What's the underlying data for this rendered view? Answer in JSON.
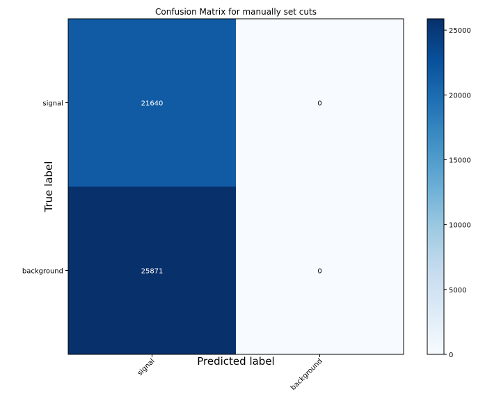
{
  "chart_data": {
    "type": "heatmap",
    "title": "Confusion Matrix for manually set cuts",
    "xlabel": "Predicted label",
    "ylabel": "True label",
    "x_categories": [
      "signal",
      "background"
    ],
    "y_categories": [
      "signal",
      "background"
    ],
    "values": [
      [
        21640,
        0
      ],
      [
        25871,
        0
      ]
    ],
    "colorbar": {
      "min": 0,
      "max": 25871,
      "ticks": [
        0,
        5000,
        10000,
        15000,
        20000,
        25000
      ],
      "colormap": "Blues",
      "color_low": "#f7fbff",
      "color_high": "#08306b"
    },
    "grid": false
  }
}
